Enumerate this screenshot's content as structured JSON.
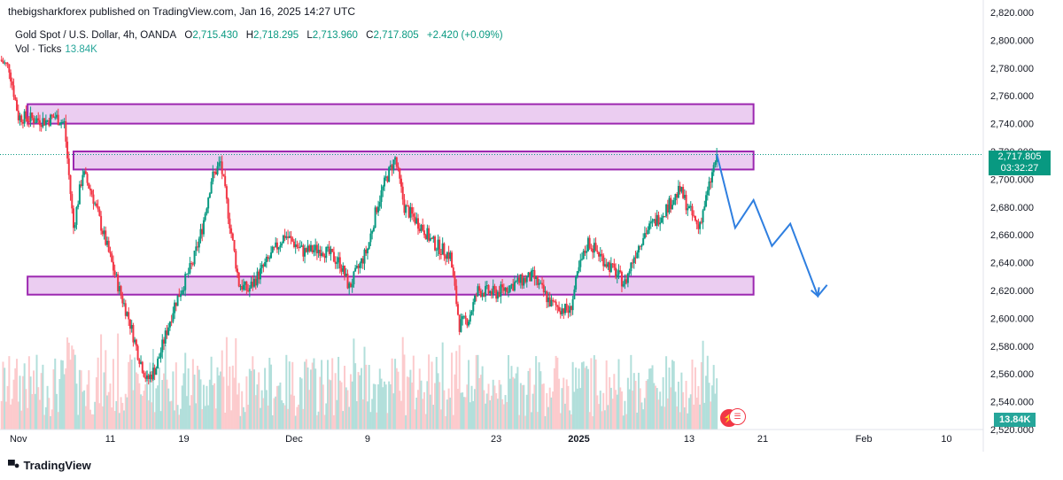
{
  "publisher_line": "thebigsharkforex published on TradingView.com, Jan 16, 2025 14:27 UTC",
  "legend": {
    "symbol": "Gold Spot / U.S. Dollar, 4h, OANDA",
    "open_label": "O",
    "open": "2,715.430",
    "high_label": "H",
    "high": "2,718.295",
    "low_label": "L",
    "low": "2,713.960",
    "close_label": "C",
    "close": "2,717.805",
    "change": "+2.420 (+0.09%)",
    "vol_label": "Vol · Ticks",
    "vol_value": "13.84K"
  },
  "current_price": {
    "price": "2,717.805",
    "countdown": "03:32:27"
  },
  "volume_tag": "13.84K",
  "footer_brand": "TradingView",
  "colors": {
    "up": "#089981",
    "down": "#f23645",
    "vol_up": "#b2dfdb",
    "vol_down": "#fccbcd",
    "zone_fill": "#e8c4ef",
    "zone_stroke": "#9c27b0",
    "projection": "#2f7fe0",
    "axis_text": "#131722"
  },
  "icons": {
    "event": "lightning-icon",
    "country": "us-flag-icon",
    "brand": "tradingview-logo-icon"
  },
  "chart_data": {
    "type": "candlestick",
    "symbol": "XAUUSD",
    "interval": "4h",
    "y_axis": {
      "min": 2520,
      "max": 2820,
      "ticks": [
        "2,820.000",
        "2,800.000",
        "2,780.000",
        "2,760.000",
        "2,740.000",
        "2,720.000",
        "2,700.000",
        "2,680.000",
        "2,660.000",
        "2,640.000",
        "2,620.000",
        "2,600.000",
        "2,580.000",
        "2,560.000",
        "2,540.000",
        "2,520.000"
      ],
      "tick_values": [
        2820,
        2800,
        2780,
        2760,
        2740,
        2720,
        2700,
        2680,
        2660,
        2640,
        2620,
        2600,
        2580,
        2560,
        2540,
        2520
      ]
    },
    "x_axis": {
      "labels": [
        "Nov",
        "11",
        "19",
        "Dec",
        "9",
        "23",
        "2025",
        "13",
        "21",
        "Feb",
        "10"
      ],
      "label_dates": [
        "2024-11-01",
        "2024-11-11",
        "2024-11-19",
        "2024-12-01",
        "2024-12-09",
        "2024-12-23",
        "2025-01-01",
        "2025-01-13",
        "2025-01-21",
        "2025-02-01",
        "2025-02-10"
      ],
      "bold_labels": [
        "2025"
      ],
      "range": [
        "2024-10-30",
        "2025-02-14"
      ]
    },
    "price_path": [
      [
        "2024-10-30",
        2786
      ],
      [
        "2024-10-31",
        2780
      ],
      [
        "2024-11-01",
        2745
      ],
      [
        "2024-11-04",
        2742
      ],
      [
        "2024-11-05",
        2745
      ],
      [
        "2024-11-06",
        2740
      ],
      [
        "2024-11-07",
        2665
      ],
      [
        "2024-11-08",
        2705
      ],
      [
        "2024-11-09",
        2690
      ],
      [
        "2024-11-12",
        2620
      ],
      [
        "2024-11-13",
        2600
      ],
      [
        "2024-11-14",
        2575
      ],
      [
        "2024-11-15",
        2555
      ],
      [
        "2024-11-16",
        2565
      ],
      [
        "2024-11-18",
        2610
      ],
      [
        "2024-11-20",
        2640
      ],
      [
        "2024-11-21",
        2665
      ],
      [
        "2024-11-22",
        2700
      ],
      [
        "2024-11-23",
        2712
      ],
      [
        "2024-11-25",
        2625
      ],
      [
        "2024-11-26",
        2620
      ],
      [
        "2024-11-28",
        2640
      ],
      [
        "2024-11-30",
        2660
      ],
      [
        "2024-12-02",
        2648
      ],
      [
        "2024-12-04",
        2650
      ],
      [
        "2024-12-06",
        2640
      ],
      [
        "2024-12-07",
        2622
      ],
      [
        "2024-12-09",
        2650
      ],
      [
        "2024-12-10",
        2680
      ],
      [
        "2024-12-11",
        2700
      ],
      [
        "2024-12-12",
        2715
      ],
      [
        "2024-12-13",
        2680
      ],
      [
        "2024-12-15",
        2665
      ],
      [
        "2024-12-16",
        2655
      ],
      [
        "2024-12-18",
        2645
      ],
      [
        "2024-12-19",
        2595
      ],
      [
        "2024-12-20",
        2600
      ],
      [
        "2024-12-21",
        2620
      ],
      [
        "2024-12-23",
        2618
      ],
      [
        "2024-12-25",
        2625
      ],
      [
        "2024-12-27",
        2630
      ],
      [
        "2024-12-29",
        2610
      ],
      [
        "2024-12-31",
        2605
      ],
      [
        "2025-01-01",
        2635
      ],
      [
        "2025-01-02",
        2655
      ],
      [
        "2025-01-04",
        2640
      ],
      [
        "2025-01-06",
        2625
      ],
      [
        "2025-01-07",
        2645
      ],
      [
        "2025-01-08",
        2660
      ],
      [
        "2025-01-10",
        2675
      ],
      [
        "2025-01-12",
        2692
      ],
      [
        "2025-01-13",
        2678
      ],
      [
        "2025-01-14",
        2665
      ],
      [
        "2025-01-15",
        2690
      ],
      [
        "2025-01-16",
        2717.805
      ]
    ],
    "zones": [
      {
        "from": "2024-11-02",
        "to": "2025-01-20",
        "low": 2740,
        "high": 2754
      },
      {
        "from": "2024-11-07",
        "to": "2025-01-20",
        "low": 2707,
        "high": 2720
      },
      {
        "from": "2024-11-02",
        "to": "2025-01-20",
        "low": 2617,
        "high": 2630
      }
    ],
    "projection": [
      [
        "2025-01-16",
        2718
      ],
      [
        "2025-01-18",
        2665
      ],
      [
        "2025-01-20",
        2685
      ],
      [
        "2025-01-22",
        2652
      ],
      [
        "2025-01-24",
        2668
      ],
      [
        "2025-01-27",
        2616
      ],
      [
        "2025-01-28",
        2624
      ]
    ],
    "last_price": 2717.805
  }
}
